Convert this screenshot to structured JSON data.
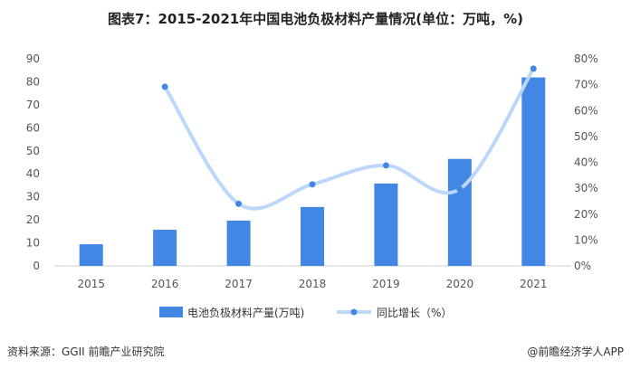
{
  "title": "图表7：2015-2021年中国电池负极材料产量情况(单位：万吨，%)",
  "source": "资料来源：GGII 前瞻产业研究院",
  "brand": "@前瞻经济学人APP",
  "chart_data": {
    "type": "bar",
    "title": "图表7：2015-2021年中国电池负极材料产量情况(单位：万吨，%)",
    "categories": [
      "2015",
      "2016",
      "2017",
      "2018",
      "2019",
      "2020",
      "2021"
    ],
    "series": [
      {
        "name": "电池负极材料产量(万吨)",
        "type": "bar",
        "axis": "left",
        "color": "#4287e3",
        "values": [
          9.4,
          15.7,
          19.7,
          25.6,
          35.8,
          46.5,
          81.9
        ]
      },
      {
        "name": "同比增长（%）",
        "type": "line",
        "axis": "right",
        "color": "#bcd7fb",
        "marker_color": "#4287e3",
        "values": [
          null,
          69.2,
          24.0,
          31.5,
          38.8,
          29.7,
          76.2
        ]
      }
    ],
    "ylim_left": [
      0,
      90
    ],
    "yticks_left": [
      "0",
      "10",
      "20",
      "30",
      "40",
      "50",
      "60",
      "70",
      "80",
      "90"
    ],
    "ylim_right": [
      0,
      80
    ],
    "yticks_right": [
      "0%",
      "10%",
      "20%",
      "30%",
      "40%",
      "50%",
      "60%",
      "70%",
      "80%"
    ],
    "legend": "bottom",
    "grid": false
  }
}
